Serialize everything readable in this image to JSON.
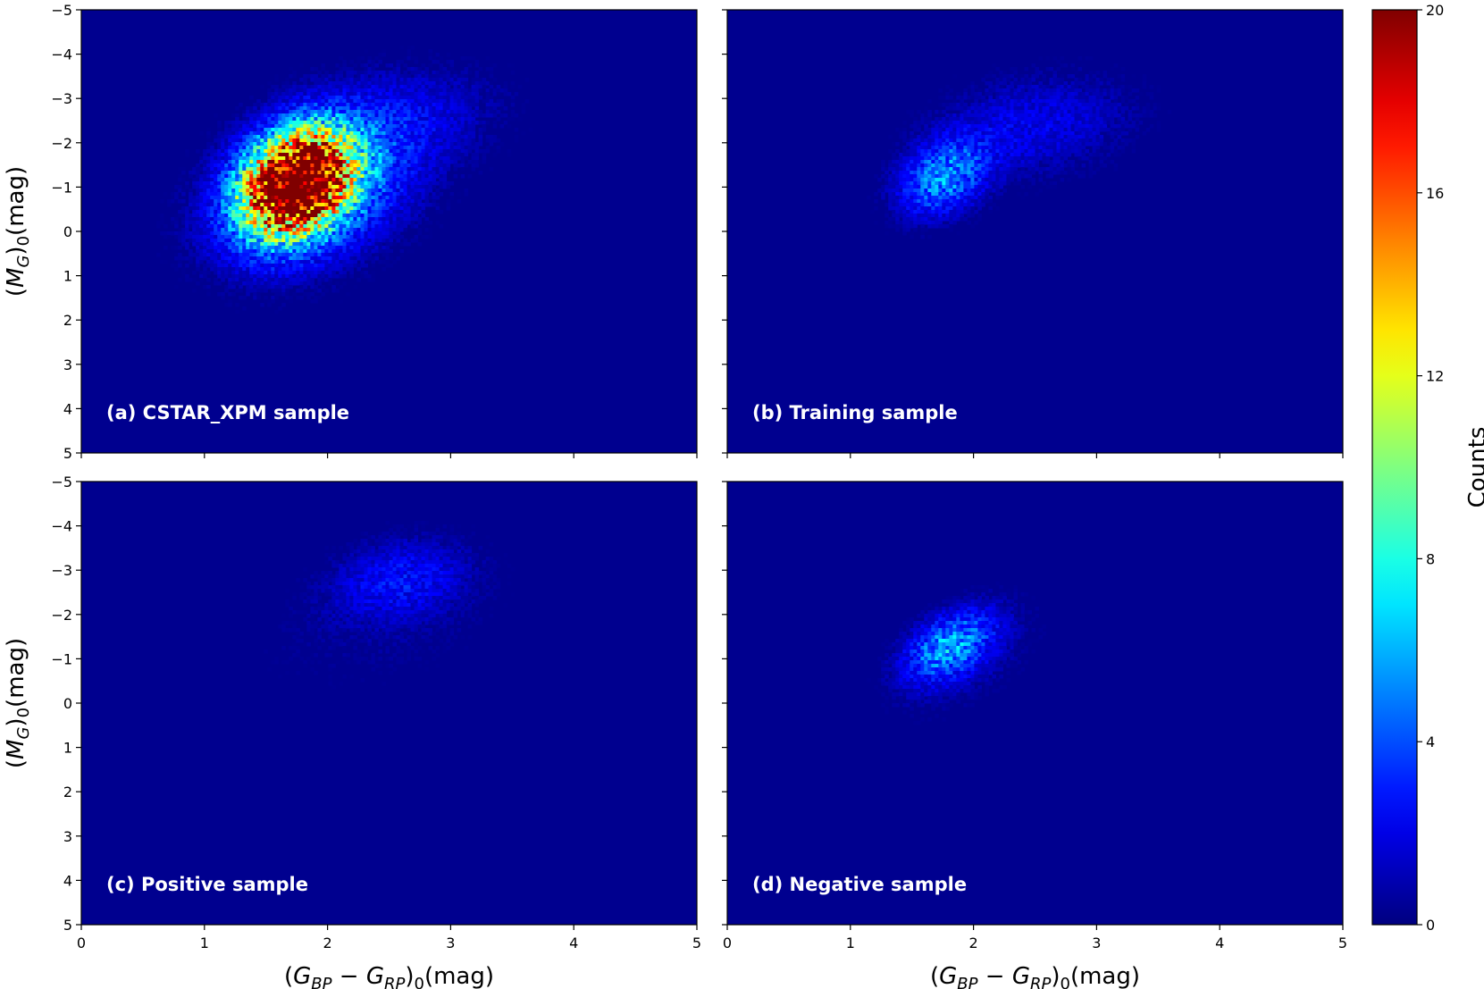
{
  "chart_data": {
    "type": "heatmap",
    "colormap": "jet",
    "background_color": "#00008f",
    "colorbar": {
      "label": "Counts",
      "range": [
        0,
        20
      ],
      "ticks": [
        0,
        4,
        8,
        12,
        16,
        20
      ]
    },
    "x_axis": {
      "label": "(G_BP − G_RP)_0(mag)",
      "range": [
        0,
        5
      ],
      "ticks": [
        0,
        1,
        2,
        3,
        4,
        5
      ]
    },
    "y_axis": {
      "label": "(M_G)_0(mag)",
      "range": [
        -5,
        5
      ],
      "inverted": true,
      "ticks": [
        -5,
        -4,
        -3,
        -2,
        -1,
        0,
        1,
        2,
        3,
        4,
        5
      ]
    },
    "panels": [
      {
        "id": "a",
        "label": "(a) CSTAR_XPM sample",
        "components": [
          {
            "center_x": 1.75,
            "center_y": -1.1,
            "sigma_x": 0.28,
            "sigma_y": 0.75,
            "rho": -0.25,
            "peak": 26
          },
          {
            "center_x": 1.9,
            "center_y": -0.9,
            "sigma_x": 0.55,
            "sigma_y": 1.15,
            "rho": -0.35,
            "peak": 5
          },
          {
            "center_x": 2.6,
            "center_y": -2.6,
            "sigma_x": 0.6,
            "sigma_y": 0.8,
            "rho": -0.2,
            "peak": 1.5
          }
        ]
      },
      {
        "id": "b",
        "label": "(b) Training sample",
        "components": [
          {
            "center_x": 1.75,
            "center_y": -1.2,
            "sigma_x": 0.25,
            "sigma_y": 0.6,
            "rho": -0.3,
            "peak": 5
          },
          {
            "center_x": 2.5,
            "center_y": -2.4,
            "sigma_x": 0.55,
            "sigma_y": 0.8,
            "rho": -0.2,
            "peak": 2
          }
        ]
      },
      {
        "id": "c",
        "label": "(c) Positive sample",
        "components": [
          {
            "center_x": 2.6,
            "center_y": -2.8,
            "sigma_x": 0.4,
            "sigma_y": 0.65,
            "rho": -0.2,
            "peak": 2.4
          },
          {
            "center_x": 2.3,
            "center_y": -1.5,
            "sigma_x": 0.8,
            "sigma_y": 1.0,
            "rho": -0.2,
            "peak": 0.5
          }
        ]
      },
      {
        "id": "d",
        "label": "(d) Negative sample",
        "components": [
          {
            "center_x": 1.8,
            "center_y": -1.3,
            "sigma_x": 0.25,
            "sigma_y": 0.55,
            "rho": -0.45,
            "peak": 5
          },
          {
            "center_x": 1.95,
            "center_y": -1.0,
            "sigma_x": 0.4,
            "sigma_y": 0.9,
            "rho": -0.5,
            "peak": 1
          }
        ]
      }
    ]
  }
}
